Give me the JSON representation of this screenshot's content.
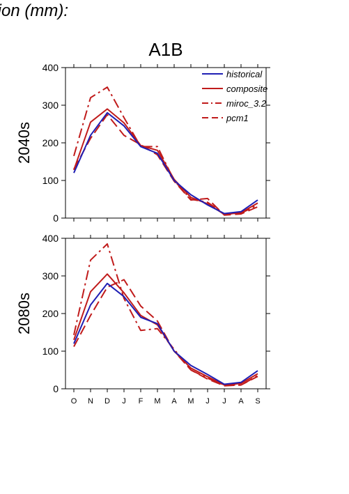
{
  "figure": {
    "title": "tion (mm):",
    "scenario": "A1B"
  },
  "colors": {
    "historical": "#1f1fb4",
    "scenario": "#c01b1b",
    "axis": "#000000"
  },
  "chart_data": [
    {
      "type": "line",
      "panel_label": "2040s",
      "categories": [
        "O",
        "N",
        "D",
        "J",
        "F",
        "M",
        "A",
        "M",
        "J",
        "J",
        "A",
        "S"
      ],
      "ylim": [
        0,
        400
      ],
      "yticks": [
        0,
        100,
        200,
        300,
        400
      ],
      "legend": "top-right",
      "series": [
        {
          "name": "historical",
          "color": "#1f1fb4",
          "dash": "solid",
          "values": [
            120,
            220,
            280,
            245,
            190,
            172,
            100,
            62,
            35,
            12,
            17,
            48
          ]
        },
        {
          "name": "composite",
          "color": "#c01b1b",
          "dash": "solid",
          "values": [
            128,
            255,
            290,
            253,
            193,
            180,
            103,
            55,
            38,
            10,
            14,
            40
          ]
        },
        {
          "name": "miroc_3.2",
          "color": "#c01b1b",
          "dash": "dashdot",
          "values": [
            165,
            320,
            348,
            267,
            190,
            190,
            100,
            50,
            42,
            11,
            13,
            35
          ]
        },
        {
          "name": "pcm1",
          "color": "#c01b1b",
          "dash": "dashed",
          "values": [
            130,
            212,
            275,
            220,
            195,
            168,
            98,
            48,
            52,
            8,
            11,
            30
          ]
        }
      ]
    },
    {
      "type": "line",
      "panel_label": "2080s",
      "categories": [
        "O",
        "N",
        "D",
        "J",
        "F",
        "M",
        "A",
        "M",
        "J",
        "J",
        "A",
        "S"
      ],
      "ylim": [
        0,
        400
      ],
      "yticks": [
        0,
        100,
        200,
        300,
        400
      ],
      "series": [
        {
          "name": "historical",
          "color": "#1f1fb4",
          "dash": "solid",
          "values": [
            120,
            223,
            280,
            245,
            190,
            173,
            100,
            62,
            38,
            12,
            17,
            48
          ]
        },
        {
          "name": "composite",
          "color": "#c01b1b",
          "dash": "solid",
          "values": [
            130,
            258,
            305,
            255,
            195,
            170,
            100,
            55,
            32,
            10,
            14,
            40
          ]
        },
        {
          "name": "miroc_3.2",
          "color": "#c01b1b",
          "dash": "dashdot",
          "values": [
            143,
            342,
            385,
            240,
            155,
            160,
            105,
            50,
            28,
            10,
            10,
            35
          ]
        },
        {
          "name": "pcm1",
          "color": "#c01b1b",
          "dash": "dashed",
          "values": [
            112,
            195,
            270,
            290,
            220,
            180,
            100,
            50,
            26,
            8,
            10,
            33
          ]
        }
      ]
    }
  ]
}
